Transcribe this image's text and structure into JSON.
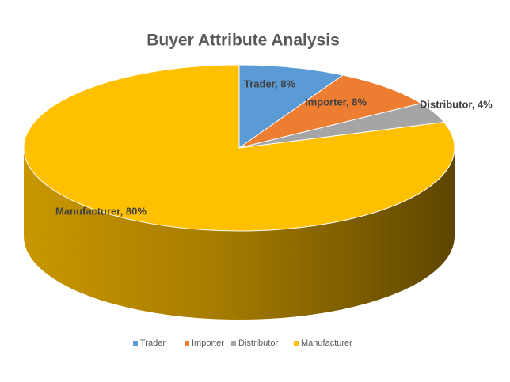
{
  "chart_data": {
    "type": "pie",
    "title": "Buyer Attribute Analysis",
    "categories": [
      "Trader",
      "Importer",
      "Distributor",
      "Manufacturer"
    ],
    "values": [
      8,
      8,
      4,
      80
    ],
    "value_labels": [
      "Trader, 8%",
      "Importer, 8%",
      "Distributor, 4%",
      "Manufacturer, 80%"
    ],
    "colors": [
      "#5b9bd5",
      "#ed7d31",
      "#a5a5a5",
      "#ffc000"
    ],
    "legend": "bottom"
  }
}
